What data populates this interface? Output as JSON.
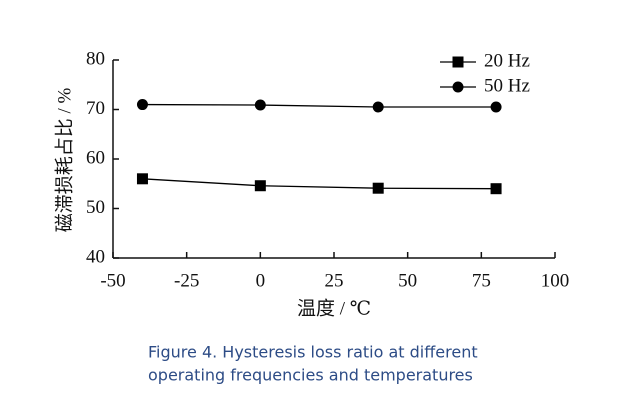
{
  "chart_data": {
    "type": "line",
    "y_label": "磁滞损耗占比 / %",
    "x_label": "温度 / ℃",
    "caption": [
      "Figure 4. Hysteresis loss ratio at different",
      "operating frequencies and temperatures"
    ],
    "x": [
      -40,
      0,
      40,
      80
    ],
    "series": [
      {
        "name": "20 Hz",
        "color": "#000000",
        "marker": "square",
        "values": [
          56,
          54.6,
          54.1,
          54.0
        ]
      },
      {
        "name": "50 Hz",
        "color": "#000000",
        "marker": "circle",
        "values": [
          71,
          70.9,
          70.5,
          70.5
        ]
      }
    ],
    "xlim": [
      -50,
      100
    ],
    "xticks": [
      -50,
      -25,
      0,
      25,
      50,
      75,
      100
    ],
    "ylim": [
      40,
      80
    ],
    "yticks": [
      40,
      50,
      60,
      70,
      80
    ],
    "legend": "upper right"
  }
}
